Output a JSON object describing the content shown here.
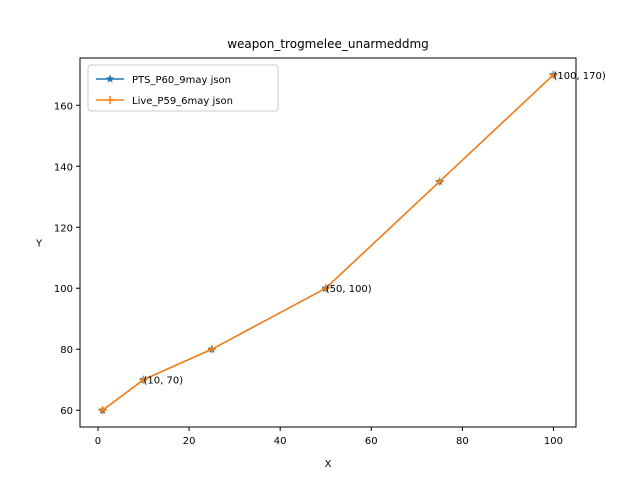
{
  "chart_data": {
    "type": "line",
    "title": "weapon_trogmelee_unarmeddmg",
    "xlabel": "X",
    "ylabel": "Y",
    "xlim": [
      -3.95,
      104.95
    ],
    "ylim": [
      54.5,
      175.5
    ],
    "xticks": [
      0,
      20,
      40,
      60,
      80,
      100
    ],
    "yticks": [
      60,
      80,
      100,
      120,
      140,
      160
    ],
    "legend_position": "top-left",
    "grid": false,
    "series": [
      {
        "name": "PTS_P60_9may json",
        "color": "#1f77b4",
        "marker": "star",
        "x": [
          1,
          10,
          25,
          50,
          75,
          100
        ],
        "y": [
          60,
          70,
          80,
          100,
          135,
          170
        ]
      },
      {
        "name": "Live_P59_6may json",
        "color": "#ff7f0e",
        "marker": "plus",
        "x": [
          1,
          10,
          25,
          50,
          75,
          100
        ],
        "y": [
          60,
          70,
          80,
          100,
          135,
          170
        ]
      }
    ],
    "annotations": [
      {
        "text": "(10, 70)",
        "x": 10,
        "y": 70
      },
      {
        "text": "(50, 100)",
        "x": 50,
        "y": 100
      },
      {
        "text": "(100, 170)",
        "x": 100,
        "y": 170
      }
    ]
  }
}
